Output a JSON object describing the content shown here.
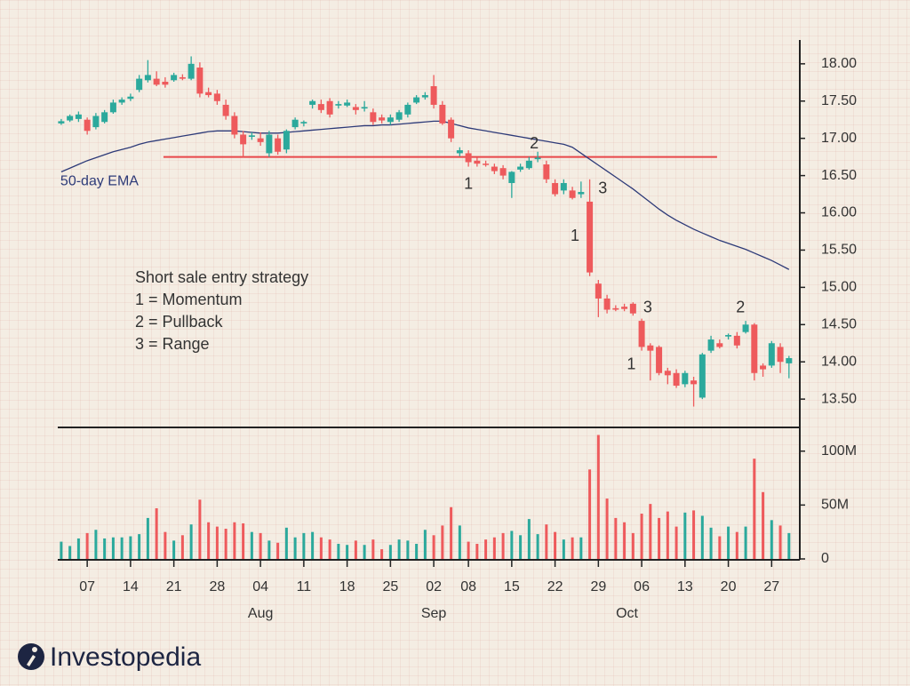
{
  "chart_data": {
    "type": "candlestick",
    "xlim": [
      -0.4,
      85.25
    ],
    "xticks": [
      {
        "value": 3,
        "label": "07"
      },
      {
        "value": 8,
        "label": "14"
      },
      {
        "value": 13,
        "label": "21"
      },
      {
        "value": 18,
        "label": "28"
      },
      {
        "value": 23,
        "label": "04"
      },
      {
        "value": 28,
        "label": "11"
      },
      {
        "value": 33,
        "label": "18"
      },
      {
        "value": 38,
        "label": "25"
      },
      {
        "value": 43,
        "label": "02"
      },
      {
        "value": 47,
        "label": "08"
      },
      {
        "value": 52,
        "label": "15"
      },
      {
        "value": 57,
        "label": "22"
      },
      {
        "value": 62,
        "label": "29"
      },
      {
        "value": 67,
        "label": "06"
      },
      {
        "value": 72,
        "label": "13"
      },
      {
        "value": 77,
        "label": "20"
      },
      {
        "value": 82,
        "label": "27"
      }
    ],
    "months": [
      {
        "value": 23,
        "label": "Aug"
      },
      {
        "value": 43,
        "label": "Sep"
      },
      {
        "value": 65.3,
        "label": "Oct"
      }
    ],
    "ylim": [
      13.12,
      18.32
    ],
    "yticks": [
      {
        "value": 13.5,
        "label": "13.50"
      },
      {
        "value": 14,
        "label": "14.00"
      },
      {
        "value": 14.5,
        "label": "14.50"
      },
      {
        "value": 15,
        "label": "15.00"
      },
      {
        "value": 15.5,
        "label": "15.50"
      },
      {
        "value": 16,
        "label": "16.00"
      },
      {
        "value": 16.5,
        "label": "16.50"
      },
      {
        "value": 17,
        "label": "17.00"
      },
      {
        "value": 17.5,
        "label": "17.50"
      },
      {
        "value": 18,
        "label": "18.00"
      }
    ],
    "y2lim": [
      0,
      122
    ],
    "y2ticks": [
      0,
      {
        "value": 50,
        "label": "50M"
      },
      {
        "value": 100,
        "label": "100M"
      }
    ],
    "up_color": "#2ba99c",
    "down_color": "#ee5a5c",
    "open": [
      17.2,
      17.24,
      17.26,
      17.25,
      17.15,
      17.22,
      17.35,
      17.48,
      17.53,
      17.65,
      17.78,
      17.8,
      17.76,
      17.78,
      17.82,
      17.8,
      17.95,
      17.62,
      17.6,
      17.45,
      17.3,
      17.05,
      17.02,
      17.0,
      16.8,
      17.0,
      16.85,
      17.15,
      17.2,
      17.45,
      17.46,
      17.5,
      17.44,
      17.44,
      17.42,
      17.4,
      17.35,
      17.28,
      17.22,
      17.25,
      17.32,
      17.48,
      17.55,
      17.7,
      17.45,
      17.25,
      16.8,
      16.8,
      16.7,
      16.66,
      16.62,
      16.6,
      16.4,
      16.58,
      16.6,
      16.72,
      16.65,
      16.4,
      16.3,
      16.3,
      16.25,
      16.15,
      15.05,
      14.85,
      14.72,
      14.74,
      14.78,
      14.55,
      14.22,
      14.2,
      13.88,
      13.85,
      13.7,
      13.75,
      13.52,
      14.15,
      14.25,
      14.34,
      14.35,
      14.4,
      14.5,
      13.95,
      13.95,
      14.2,
      13.98
    ],
    "high": [
      17.26,
      17.32,
      17.36,
      17.28,
      17.34,
      17.38,
      17.52,
      17.55,
      17.6,
      17.85,
      18.05,
      17.9,
      17.82,
      17.88,
      17.86,
      18.1,
      18.02,
      17.68,
      17.65,
      17.52,
      17.35,
      17.1,
      17.08,
      17.08,
      17.1,
      17.05,
      17.12,
      17.28,
      17.24,
      17.52,
      17.52,
      17.54,
      17.5,
      17.52,
      17.46,
      17.5,
      17.4,
      17.32,
      17.32,
      17.38,
      17.48,
      17.58,
      17.62,
      17.85,
      17.5,
      17.28,
      16.88,
      16.84,
      16.74,
      16.7,
      16.66,
      16.64,
      16.56,
      16.66,
      16.75,
      16.82,
      16.7,
      16.45,
      16.45,
      16.35,
      16.42,
      16.45,
      15.1,
      14.9,
      14.76,
      14.78,
      14.8,
      14.58,
      14.25,
      14.22,
      13.92,
      13.9,
      13.88,
      13.8,
      14.12,
      14.35,
      14.3,
      14.38,
      14.4,
      14.55,
      14.52,
      13.98,
      14.28,
      14.25,
      14.08
    ],
    "low": [
      17.18,
      17.22,
      17.22,
      17.05,
      17.12,
      17.2,
      17.33,
      17.45,
      17.5,
      17.62,
      17.75,
      17.7,
      17.68,
      17.76,
      17.78,
      17.78,
      17.55,
      17.55,
      17.45,
      17.25,
      17.0,
      16.75,
      16.98,
      16.9,
      16.75,
      16.78,
      16.8,
      17.12,
      17.16,
      17.4,
      17.34,
      17.28,
      17.4,
      17.42,
      17.32,
      17.36,
      17.18,
      17.2,
      17.18,
      17.22,
      17.28,
      17.46,
      17.52,
      17.4,
      17.18,
      16.95,
      16.76,
      16.62,
      16.62,
      16.62,
      16.52,
      16.45,
      16.2,
      16.55,
      16.58,
      16.68,
      16.4,
      16.22,
      16.25,
      16.18,
      16.2,
      15.15,
      14.6,
      14.65,
      14.68,
      14.68,
      14.62,
      14.15,
      13.75,
      13.82,
      13.7,
      13.65,
      13.66,
      13.4,
      13.5,
      14.12,
      14.18,
      14.3,
      14.18,
      14.38,
      13.75,
      13.8,
      13.92,
      13.85,
      13.78
    ],
    "close": [
      17.23,
      17.3,
      17.32,
      17.1,
      17.3,
      17.35,
      17.48,
      17.52,
      17.56,
      17.8,
      17.85,
      17.72,
      17.72,
      17.85,
      17.8,
      18.0,
      17.6,
      17.58,
      17.5,
      17.3,
      17.05,
      16.92,
      17.04,
      16.95,
      17.05,
      16.82,
      17.1,
      17.25,
      17.22,
      17.5,
      17.38,
      17.32,
      17.46,
      17.48,
      17.38,
      17.42,
      17.22,
      17.24,
      17.28,
      17.35,
      17.45,
      17.55,
      17.58,
      17.45,
      17.2,
      17.0,
      16.84,
      16.68,
      16.66,
      16.65,
      16.56,
      16.5,
      16.55,
      16.62,
      16.7,
      16.74,
      16.45,
      16.25,
      16.4,
      16.2,
      16.28,
      15.2,
      14.85,
      14.7,
      14.7,
      14.71,
      14.65,
      14.2,
      14.15,
      13.85,
      13.82,
      13.68,
      13.85,
      13.7,
      14.1,
      14.3,
      14.2,
      14.36,
      14.22,
      14.5,
      13.85,
      13.9,
      14.25,
      14.0,
      14.05
    ],
    "volume": [
      16,
      12,
      19,
      24,
      27,
      19,
      20,
      20,
      21,
      23,
      38,
      47,
      25,
      17,
      22,
      32,
      55,
      34,
      30,
      28,
      34,
      33,
      25,
      24,
      17,
      15,
      29,
      20,
      24,
      25,
      20,
      18,
      14,
      13,
      17,
      13,
      18,
      9,
      13,
      18,
      17,
      14,
      27,
      22,
      31,
      48,
      31,
      16,
      14,
      18,
      20,
      24,
      26,
      22,
      37,
      23,
      32,
      25,
      18,
      20,
      20,
      83,
      115,
      56,
      38,
      34,
      24,
      42,
      51,
      38,
      44,
      30,
      43,
      45,
      40,
      29,
      21,
      30,
      25,
      30,
      93,
      62,
      36,
      31,
      24
    ],
    "ema": {
      "name": "50-day EMA",
      "color": "#2d3a78",
      "label_at": [
        -0.1,
        16.42
      ],
      "values": [
        16.55,
        16.6,
        16.65,
        16.7,
        16.74,
        16.78,
        16.82,
        16.85,
        16.88,
        16.92,
        16.95,
        16.97,
        16.99,
        17.01,
        17.03,
        17.05,
        17.07,
        17.09,
        17.1,
        17.1,
        17.1,
        17.09,
        17.08,
        17.07,
        17.07,
        17.07,
        17.08,
        17.09,
        17.1,
        17.11,
        17.12,
        17.13,
        17.14,
        17.15,
        17.16,
        17.17,
        17.17,
        17.18,
        17.18,
        17.19,
        17.2,
        17.21,
        17.22,
        17.23,
        17.23,
        17.2,
        17.17,
        17.14,
        17.12,
        17.1,
        17.08,
        17.06,
        17.04,
        17.02,
        17.0,
        16.98,
        16.96,
        16.94,
        16.92,
        16.88,
        16.8,
        16.72,
        16.64,
        16.56,
        16.48,
        16.4,
        16.32,
        16.23,
        16.14,
        16.05,
        15.97,
        15.9,
        15.84,
        15.78,
        15.73,
        15.68,
        15.63,
        15.59,
        15.55,
        15.51,
        15.46,
        15.41,
        15.36,
        15.3,
        15.24
      ]
    },
    "level": {
      "value": 16.75,
      "from": 11.8,
      "to": 75.7,
      "color": "#e8474a"
    },
    "annotations": [
      {
        "text": "1",
        "x": 47,
        "y": 16.38
      },
      {
        "text": "2",
        "x": 54.6,
        "y": 16.92
      },
      {
        "text": "3",
        "x": 62.5,
        "y": 16.32
      },
      {
        "text": "1",
        "x": 59.3,
        "y": 15.68
      },
      {
        "text": "3",
        "x": 67.7,
        "y": 14.72
      },
      {
        "text": "1",
        "x": 65.8,
        "y": 13.96
      },
      {
        "text": "2",
        "x": 78.4,
        "y": 14.72
      }
    ],
    "notes": [
      "Short sale entry strategy",
      "1 = Momentum",
      "2 = Pullback",
      "3 = Range"
    ]
  },
  "brand": "Investopedia"
}
